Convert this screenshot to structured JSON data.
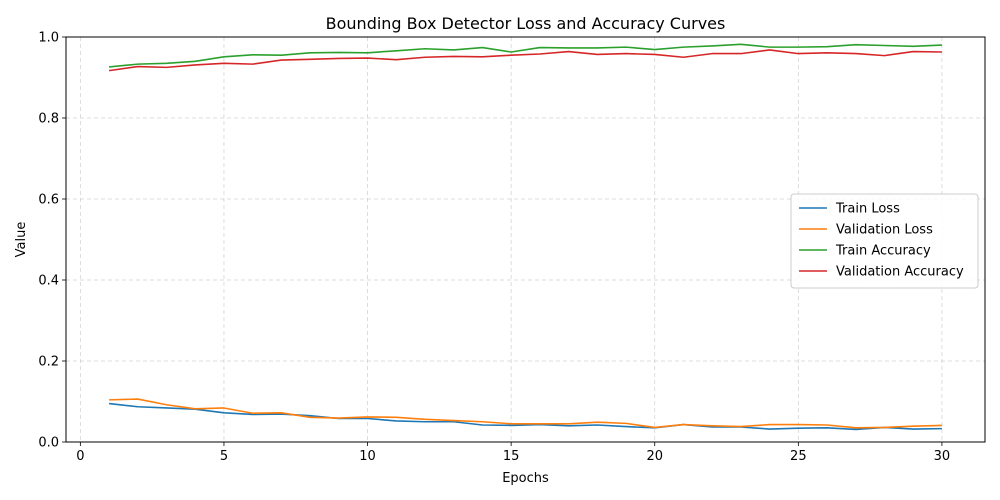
{
  "chart_data": {
    "type": "line",
    "title": "Bounding Box Detector Loss and Accuracy Curves",
    "xlabel": "Epochs",
    "ylabel": "Value",
    "xlim": [
      -0.5,
      31.5
    ],
    "ylim": [
      0,
      1
    ],
    "xticks": [
      0,
      5,
      10,
      15,
      20,
      25,
      30
    ],
    "yticks": [
      0.0,
      0.2,
      0.4,
      0.6,
      0.8,
      1.0
    ],
    "xtick_labels": [
      "0",
      "5",
      "10",
      "15",
      "20",
      "25",
      "30"
    ],
    "ytick_labels": [
      "0.0",
      "0.2",
      "0.4",
      "0.6",
      "0.8",
      "1.0"
    ],
    "grid": true,
    "legend_position": "center-right",
    "x": [
      1,
      2,
      3,
      4,
      5,
      6,
      7,
      8,
      9,
      10,
      11,
      12,
      13,
      14,
      15,
      16,
      17,
      18,
      19,
      20,
      21,
      22,
      23,
      24,
      25,
      26,
      27,
      28,
      29,
      30
    ],
    "series": [
      {
        "name": "Train Loss",
        "color": "#1f77b4",
        "values": [
          0.095,
          0.087,
          0.084,
          0.081,
          0.072,
          0.068,
          0.069,
          0.065,
          0.058,
          0.058,
          0.052,
          0.05,
          0.05,
          0.042,
          0.041,
          0.043,
          0.04,
          0.042,
          0.038,
          0.035,
          0.043,
          0.037,
          0.037,
          0.032,
          0.034,
          0.035,
          0.031,
          0.036,
          0.032,
          0.033
        ]
      },
      {
        "name": "Validation Loss",
        "color": "#ff7f0e",
        "values": [
          0.104,
          0.106,
          0.092,
          0.082,
          0.084,
          0.071,
          0.072,
          0.061,
          0.059,
          0.062,
          0.061,
          0.056,
          0.053,
          0.05,
          0.045,
          0.045,
          0.045,
          0.049,
          0.046,
          0.036,
          0.043,
          0.04,
          0.038,
          0.043,
          0.043,
          0.042,
          0.035,
          0.036,
          0.039,
          0.041
        ]
      },
      {
        "name": "Train Accuracy",
        "color": "#2ca02c",
        "values": [
          0.926,
          0.933,
          0.935,
          0.94,
          0.951,
          0.956,
          0.955,
          0.961,
          0.962,
          0.961,
          0.966,
          0.971,
          0.968,
          0.974,
          0.963,
          0.974,
          0.973,
          0.973,
          0.975,
          0.969,
          0.975,
          0.978,
          0.982,
          0.975,
          0.975,
          0.976,
          0.981,
          0.979,
          0.977,
          0.98
        ]
      },
      {
        "name": "Validation Accuracy",
        "color": "#d62728",
        "values": [
          0.917,
          0.927,
          0.925,
          0.931,
          0.935,
          0.933,
          0.943,
          0.945,
          0.947,
          0.948,
          0.944,
          0.95,
          0.952,
          0.951,
          0.955,
          0.958,
          0.964,
          0.957,
          0.959,
          0.957,
          0.95,
          0.959,
          0.959,
          0.968,
          0.959,
          0.961,
          0.959,
          0.954,
          0.964,
          0.963
        ]
      }
    ]
  }
}
